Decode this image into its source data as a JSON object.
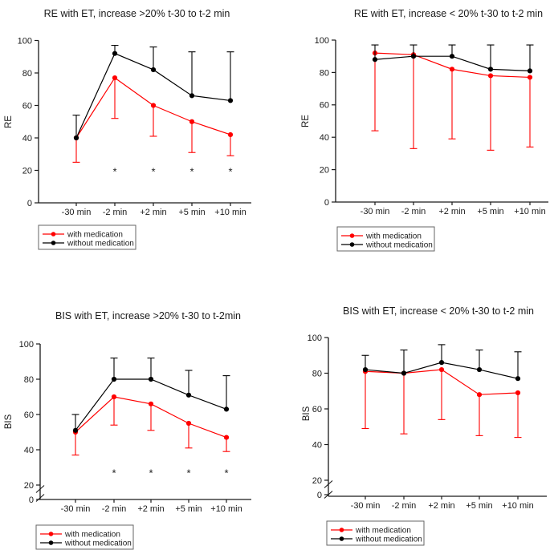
{
  "figure": {
    "background": "#ffffff",
    "layout": "2x2 grid of line charts with error bars"
  },
  "colors": {
    "with_medication": "#ff0000",
    "without_medication": "#000000",
    "axis": "#1a1a1a",
    "legend_border": "#666666",
    "background": "#ffffff"
  },
  "chart_data": [
    {
      "type": "line",
      "title": "RE with ET, increase >20% t-30 to t-2 min",
      "ylabel": "RE",
      "xlabel": "",
      "categories": [
        "-30 min",
        "-2 min",
        "+2 min",
        "+5 min",
        "+10 min"
      ],
      "yticks": [
        0,
        20,
        40,
        60,
        80,
        100
      ],
      "ylim": [
        0,
        100
      ],
      "axis_break": false,
      "grid": false,
      "legend_position": "below-left",
      "series": [
        {
          "name": "with medication",
          "color": "#ff0000",
          "marker": "circle",
          "values": [
            40,
            77,
            60,
            50,
            42
          ],
          "error_dir": "down",
          "error_to": [
            25,
            52,
            41,
            31,
            29
          ]
        },
        {
          "name": "without medication",
          "color": "#000000",
          "marker": "circle",
          "values": [
            40,
            92,
            82,
            66,
            63
          ],
          "error_dir": "up",
          "error_to": [
            54,
            97,
            96,
            93,
            93
          ]
        }
      ],
      "significance": {
        "symbol": "*",
        "y": 20.5,
        "category_indexes": [
          1,
          2,
          3,
          4
        ]
      }
    },
    {
      "type": "line",
      "title": "RE with ET, increase < 20% t-30 to t-2 min",
      "ylabel": "RE",
      "xlabel": "",
      "categories": [
        "-30 min",
        "-2 min",
        "+2 min",
        "+5 min",
        "+10 min"
      ],
      "yticks": [
        0,
        20,
        40,
        60,
        80,
        100
      ],
      "ylim": [
        0,
        100
      ],
      "axis_break": false,
      "grid": false,
      "legend_position": "below-left",
      "series": [
        {
          "name": "with medication",
          "color": "#ff0000",
          "marker": "circle",
          "values": [
            92,
            91,
            82,
            78,
            77
          ],
          "error_dir": "down",
          "error_to": [
            44,
            33,
            39,
            32,
            34
          ]
        },
        {
          "name": "without medication",
          "color": "#000000",
          "marker": "circle",
          "values": [
            88,
            90,
            90,
            82,
            81
          ],
          "error_dir": "up",
          "error_to": [
            97,
            97,
            97,
            97,
            97
          ]
        }
      ],
      "significance": null
    },
    {
      "type": "line",
      "title": "BIS with ET, increase >20% t-30 to t-2min",
      "ylabel": "BIS",
      "xlabel": "",
      "categories": [
        "-30 min",
        "-2 min",
        "+2 min",
        "+5 min",
        "+10 min"
      ],
      "yticks": [
        0,
        20,
        40,
        60,
        80,
        100
      ],
      "ylim": [
        0,
        100
      ],
      "axis_break": true,
      "break_between": [
        0,
        20
      ],
      "grid": false,
      "legend_position": "below-left",
      "series": [
        {
          "name": "with medication",
          "color": "#ff0000",
          "marker": "circle",
          "values": [
            50,
            70,
            66,
            55,
            47
          ],
          "error_dir": "down",
          "error_to": [
            37,
            54,
            51,
            41,
            39
          ]
        },
        {
          "name": "without medication",
          "color": "#000000",
          "marker": "circle",
          "values": [
            51,
            80,
            80,
            71,
            63
          ],
          "error_dir": "up",
          "error_to": [
            60,
            92,
            92,
            85,
            82
          ]
        }
      ],
      "significance": {
        "symbol": "*",
        "y": 28,
        "category_indexes": [
          1,
          2,
          3,
          4
        ]
      }
    },
    {
      "type": "line",
      "title": "BIS with ET, increase < 20% t-30 to t-2 min",
      "ylabel": "BIS",
      "xlabel": "",
      "categories": [
        "-30 min",
        "-2 min",
        "+2 min",
        "+5 min",
        "+10 min"
      ],
      "yticks": [
        0,
        20,
        40,
        60,
        80,
        100
      ],
      "ylim": [
        0,
        100
      ],
      "axis_break": true,
      "break_between": [
        0,
        20
      ],
      "grid": false,
      "legend_position": "below-left",
      "series": [
        {
          "name": "with medication",
          "color": "#ff0000",
          "marker": "circle",
          "values": [
            81,
            80,
            82,
            68,
            69
          ],
          "error_dir": "down",
          "error_to": [
            49,
            46,
            54,
            45,
            44
          ]
        },
        {
          "name": "without medication",
          "color": "#000000",
          "marker": "circle",
          "values": [
            82,
            80,
            86,
            82,
            77
          ],
          "error_dir": "up",
          "error_to": [
            90,
            93,
            96,
            93,
            92
          ]
        }
      ],
      "significance": null
    }
  ]
}
